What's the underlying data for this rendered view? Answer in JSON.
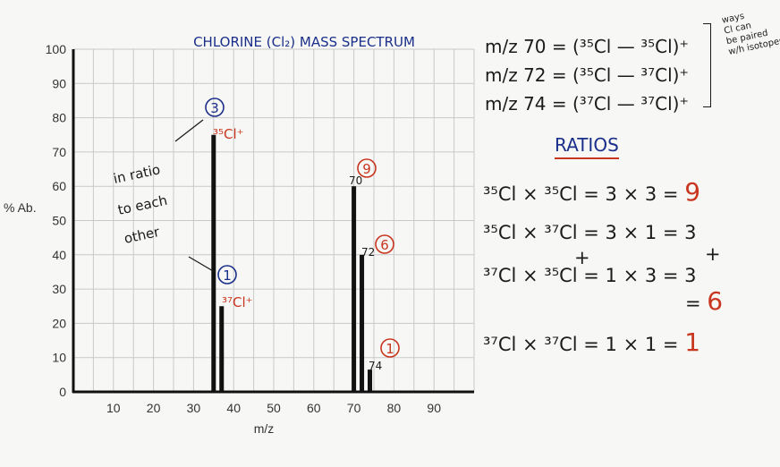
{
  "chart_data": {
    "type": "bar",
    "title": "CHLORINE (Cl₂) MASS SPECTRUM",
    "xlabel": "m/z",
    "ylabel": "% Ab.",
    "xlim": [
      0,
      100
    ],
    "ylim": [
      0,
      100
    ],
    "x_ticks": [
      "10",
      "20",
      "30",
      "40",
      "50",
      "60",
      "70",
      "80",
      "90"
    ],
    "y_ticks": [
      "0",
      "10",
      "20",
      "30",
      "40",
      "50",
      "60",
      "70",
      "80",
      "90",
      "100"
    ],
    "grid": true,
    "series": [
      {
        "x": [
          35,
          37,
          70,
          72,
          74
        ],
        "values": [
          75,
          25,
          60,
          40,
          6.5
        ]
      }
    ],
    "annotations": {
      "peak35": {
        "circle": "3",
        "label": "³⁵Cl⁺"
      },
      "peak37": {
        "circle": "1",
        "label": "³⁷Cl⁺"
      },
      "peak70": {
        "circle": "9",
        "label": "70"
      },
      "peak72": {
        "circle": "6",
        "label": "72"
      },
      "peak74": {
        "circle": "1",
        "label": "74"
      },
      "side_note": [
        "in ratio",
        "to each",
        "other"
      ]
    }
  },
  "notes": {
    "equations": [
      "m/z 70 = (³⁵Cl — ³⁵Cl)⁺",
      "m/z 72 = (³⁵Cl — ³⁷Cl)⁺",
      "m/z 74 = (³⁷Cl — ³⁷Cl)⁺"
    ],
    "bracket_note": [
      "ways",
      "Cl can",
      "be paired",
      "w/h isotopes"
    ],
    "ratios_title": "RATIOS",
    "ratio_lines": [
      {
        "text": "³⁵Cl × ³⁵Cl  =  3 × 3   =",
        "result": "9"
      },
      {
        "text": "³⁵Cl × ³⁷Cl  =  3 × 1   =  3",
        "result": ""
      },
      {
        "text": "+",
        "result": ""
      },
      {
        "text": "³⁷Cl × ³⁵Cl  =  1 × 3   =  3",
        "result": ""
      },
      {
        "text": "=",
        "result": "6"
      },
      {
        "text": "³⁷Cl × ³⁷Cl  =  1 × 1   =",
        "result": "1"
      }
    ]
  },
  "colors": {
    "bar": "#111111",
    "grid": "#c9c9c9",
    "blue_ink": "#1a2f8a",
    "red_ink": "#c8361f"
  }
}
